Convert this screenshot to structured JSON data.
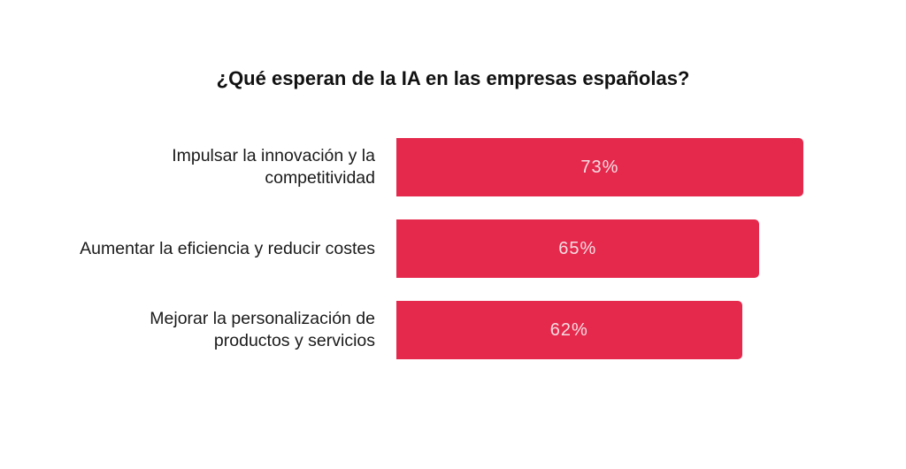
{
  "chart_data": {
    "type": "bar",
    "orientation": "horizontal",
    "title": "¿Qué esperan de la IA en las empresas españolas?",
    "categories": [
      "Impulsar la innovación y la competitividad",
      "Aumentar la eficiencia y reducir costes",
      "Mejorar la personalización de productos y servicios"
    ],
    "values": [
      73,
      65,
      62
    ],
    "value_labels": [
      "73%",
      "65%",
      "62%"
    ],
    "unit": "%",
    "bar_color": "#E5294D",
    "grid": false,
    "axes_visible": false
  }
}
